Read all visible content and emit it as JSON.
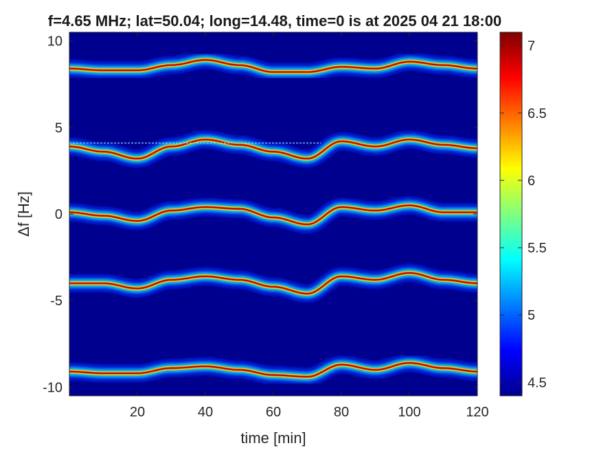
{
  "chart_data": {
    "type": "heatmap",
    "title": "f=4.65 MHz;  lat=50.04; long=14.48, time=0 is at 2025 04 21 18:00",
    "xlabel": "time [min]",
    "ylabel": "Δf [Hz]",
    "xlim": [
      0,
      120
    ],
    "ylim": [
      -10.5,
      10.5
    ],
    "x_ticks": [
      "20",
      "40",
      "60",
      "80",
      "100",
      "120"
    ],
    "y_ticks": [
      "10",
      "5",
      "0",
      "-5",
      "-10"
    ],
    "x_tick_values": [
      20,
      40,
      60,
      80,
      100,
      120
    ],
    "y_tick_values": [
      10,
      5,
      0,
      -5,
      -10
    ],
    "colormap": "jet",
    "colorbar": {
      "range": [
        4.4,
        7.1
      ],
      "ticks": [
        "7",
        "6.5",
        "6",
        "5.5",
        "5",
        "4.5"
      ],
      "tick_values": [
        7,
        6.5,
        6,
        5.5,
        5,
        4.5
      ]
    },
    "grid": false,
    "background_color": "#00008f",
    "series": [
      {
        "center_hz": 8.4,
        "time_min": [
          0,
          10,
          20,
          30,
          40,
          50,
          60,
          70,
          80,
          90,
          100,
          110,
          120
        ],
        "delta_f_hz": [
          8.4,
          8.3,
          8.3,
          8.6,
          8.9,
          8.6,
          8.2,
          8.2,
          8.5,
          8.4,
          8.8,
          8.6,
          8.4
        ]
      },
      {
        "center_hz": 4.1,
        "time_min": [
          0,
          10,
          20,
          30,
          40,
          50,
          60,
          70,
          80,
          90,
          100,
          110,
          120
        ],
        "delta_f_hz": [
          3.9,
          3.6,
          3.2,
          3.9,
          4.3,
          4.0,
          3.6,
          3.2,
          4.2,
          3.9,
          4.3,
          4.0,
          3.8
        ]
      },
      {
        "center_hz": 0.0,
        "time_min": [
          0,
          10,
          20,
          30,
          40,
          50,
          60,
          70,
          80,
          90,
          100,
          110,
          120
        ],
        "delta_f_hz": [
          0.1,
          -0.1,
          -0.4,
          0.2,
          0.4,
          0.3,
          -0.2,
          -0.6,
          0.4,
          0.2,
          0.5,
          0.1,
          0.1
        ]
      },
      {
        "center_hz": -4.0,
        "time_min": [
          0,
          10,
          20,
          30,
          40,
          50,
          60,
          70,
          80,
          90,
          100,
          110,
          120
        ],
        "delta_f_hz": [
          -4.0,
          -4.0,
          -4.3,
          -3.8,
          -3.6,
          -3.8,
          -4.2,
          -4.6,
          -3.6,
          -3.8,
          -3.4,
          -3.8,
          -4.0
        ]
      },
      {
        "center_hz": -9.0,
        "time_min": [
          0,
          10,
          20,
          30,
          40,
          50,
          60,
          70,
          80,
          90,
          100,
          110,
          120
        ],
        "delta_f_hz": [
          -9.1,
          -9.2,
          -9.2,
          -8.9,
          -8.8,
          -9.0,
          -9.3,
          -9.4,
          -8.7,
          -9.0,
          -8.6,
          -8.9,
          -9.1
        ]
      }
    ],
    "horizontal_reference_line_hz": 4.1
  }
}
